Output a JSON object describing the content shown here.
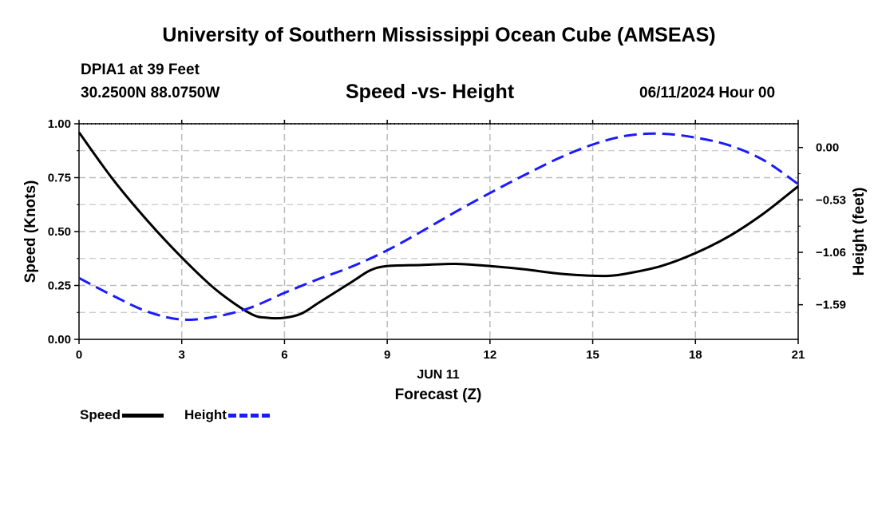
{
  "header": {
    "title": "University of Southern Mississippi Ocean Cube (AMSEAS)",
    "station": "DPIA1 at 39 Feet",
    "coords": "30.2500N  88.0750W",
    "run_time": "06/11/2024 Hour 00"
  },
  "footer": {
    "title": "University of Southern Mississippi Ocean Cube (AMSEAS)"
  },
  "legend": {
    "speed_label": "Speed",
    "height_label": "Height"
  },
  "chart_data": {
    "type": "line",
    "title": "Speed -vs- Height",
    "date_label": "JUN 11",
    "xlabel": "Forecast (Z)",
    "ylabel": "Speed (Knots)",
    "y2label": "Height (feet)",
    "xlim": [
      0,
      21
    ],
    "ylim": [
      0,
      1
    ],
    "y2lim": [
      -1.94,
      0.24
    ],
    "x_ticks": [
      0,
      3,
      6,
      9,
      12,
      15,
      18,
      21
    ],
    "x_tick_labels": [
      "0",
      "3",
      "6",
      "9",
      "12",
      "15",
      "18",
      "21"
    ],
    "y_ticks": [
      0,
      0.25,
      0.5,
      0.75,
      1.0
    ],
    "y_tick_labels": [
      "0.00",
      "0.25",
      "0.50",
      "0.75",
      "1.00"
    ],
    "y2_ticks": [
      0.0,
      -0.53,
      -1.06,
      -1.59
    ],
    "y2_tick_labels": [
      "0.00",
      "−0.53",
      "−1.06",
      "−1.59"
    ],
    "grid": true,
    "colors": {
      "speed": "#000000",
      "height": "#1a1aff",
      "grid": "#bbbbbb"
    },
    "series": [
      {
        "name": "Speed",
        "axis": "left",
        "x": [
          0,
          1,
          2,
          3,
          4,
          5,
          5.5,
          6,
          6.5,
          7,
          8,
          8.5,
          9,
          10,
          11,
          12,
          13,
          14,
          15,
          15.5,
          16,
          17,
          18,
          19,
          20,
          21
        ],
        "values": [
          0.96,
          0.74,
          0.55,
          0.38,
          0.23,
          0.12,
          0.1,
          0.1,
          0.12,
          0.17,
          0.27,
          0.32,
          0.34,
          0.345,
          0.35,
          0.34,
          0.325,
          0.305,
          0.295,
          0.295,
          0.305,
          0.34,
          0.4,
          0.48,
          0.585,
          0.71
        ]
      },
      {
        "name": "Height",
        "axis": "right",
        "x": [
          0,
          1,
          2,
          3,
          4,
          5,
          6,
          7,
          8,
          9,
          10,
          11,
          12,
          13,
          14,
          15,
          16,
          17,
          18,
          19,
          20,
          21
        ],
        "values": [
          -1.32,
          -1.5,
          -1.66,
          -1.74,
          -1.71,
          -1.62,
          -1.47,
          -1.33,
          -1.2,
          -1.04,
          -0.85,
          -0.65,
          -0.46,
          -0.28,
          -0.11,
          0.03,
          0.12,
          0.14,
          0.1,
          0.02,
          -0.13,
          -0.37
        ]
      }
    ]
  }
}
